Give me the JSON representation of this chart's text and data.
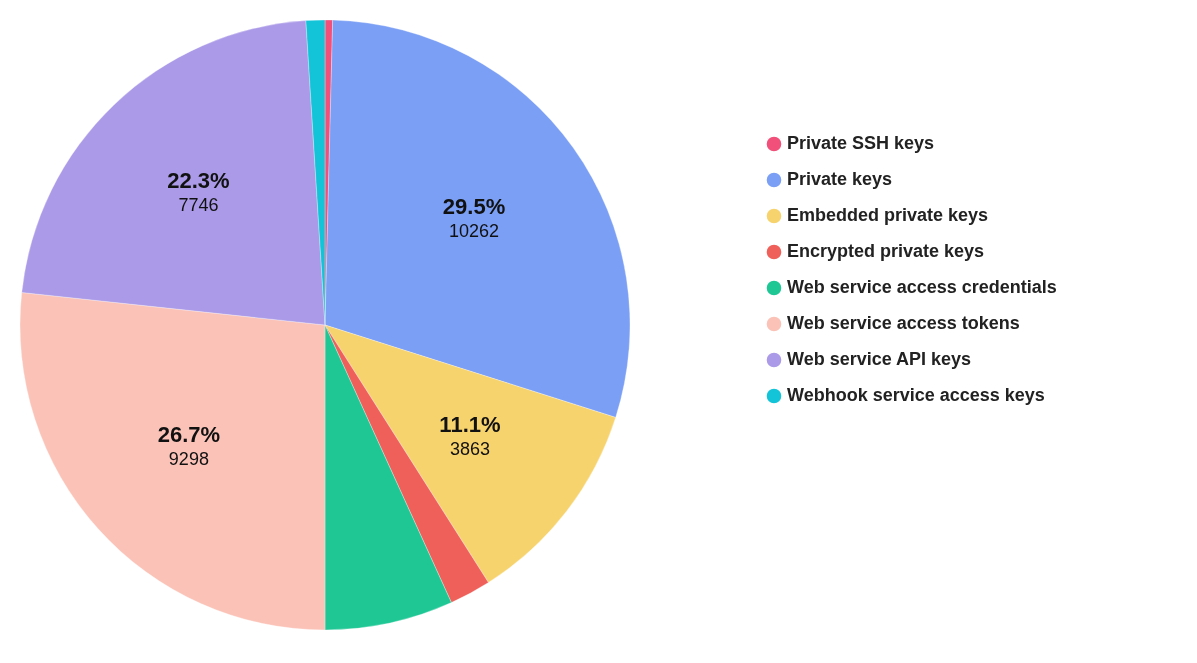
{
  "chart_data": {
    "type": "pie",
    "categories": [
      "Private SSH keys",
      "Private keys",
      "Embedded private keys",
      "Encrypted private keys",
      "Web service access credentials",
      "Web service access tokens",
      "Web service API keys",
      "Webhook service access keys"
    ],
    "values": [
      0.4,
      29.5,
      11.1,
      2.2,
      6.8,
      26.7,
      22.3,
      1.0
    ],
    "colors": [
      "#f0507a",
      "#7b9ff5",
      "#f7d36e",
      "#f0605a",
      "#1fc795",
      "#fbc3b8",
      "#ab9ae8",
      "#13c4d8"
    ],
    "value_labels": [
      null,
      "29.5%\n10262",
      "11.1%\n3863",
      null,
      null,
      "26.7%\n9298",
      "22.3%\n7746",
      null
    ],
    "legend": "right"
  }
}
